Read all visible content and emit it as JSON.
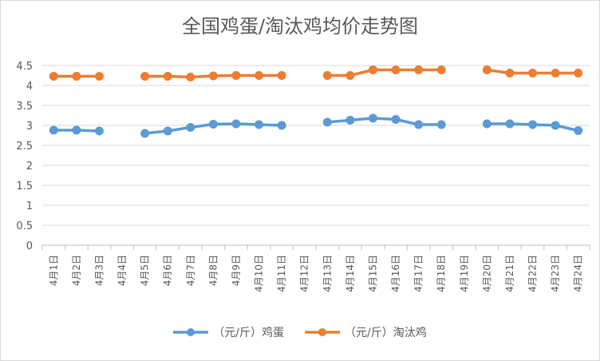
{
  "chart_data": {
    "type": "line",
    "title": "全国鸡蛋/淘汰鸡均价走势图",
    "categories": [
      "4月1日",
      "4月2日",
      "4月3日",
      "4月4日",
      "4月5日",
      "4月6日",
      "4月7日",
      "4月8日",
      "4月9日",
      "4月10日",
      "4月11日",
      "4月12日",
      "4月13日",
      "4月14日",
      "4月15日",
      "4月16日",
      "4月17日",
      "4月18日",
      "4月19日",
      "4月20日",
      "4月21日",
      "4月22日",
      "4月23日",
      "4月24日"
    ],
    "ylim": [
      0,
      4.5
    ],
    "yticks": [
      "0",
      "0.5",
      "1",
      "1.5",
      "2",
      "2.5",
      "3",
      "3.5",
      "4",
      "4.5"
    ],
    "grid": true,
    "legend_position": "bottom",
    "series": [
      {
        "name": "（元/斤）鸡蛋",
        "color": "#5B9BD5",
        "values": [
          2.88,
          2.88,
          2.86,
          null,
          2.8,
          2.86,
          2.95,
          3.03,
          3.04,
          3.02,
          3.0,
          null,
          3.08,
          3.13,
          3.18,
          3.15,
          3.02,
          3.02,
          null,
          3.04,
          3.04,
          3.02,
          3.0,
          2.87
        ]
      },
      {
        "name": "（元/斤）淘汰鸡",
        "color": "#ED7D31",
        "values": [
          4.23,
          4.23,
          4.23,
          null,
          4.23,
          4.23,
          4.21,
          4.24,
          4.25,
          4.25,
          4.25,
          null,
          4.25,
          4.25,
          4.39,
          4.39,
          4.39,
          4.39,
          null,
          4.39,
          4.31,
          4.31,
          4.31,
          4.31
        ]
      }
    ]
  }
}
